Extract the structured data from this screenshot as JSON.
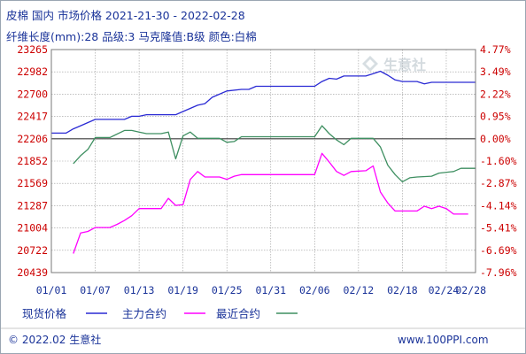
{
  "header": {
    "title": "皮棉 国内 市场价格 2021-21-30 - 2022-02-28",
    "subtitle": "纤维长度(mm):28 品级:3 马克隆值:B级 颜色:白棉"
  },
  "watermark": {
    "logo_text": "生意社"
  },
  "footer": {
    "copyright": "© 2022.02 生意社",
    "website": "www.100PPI.com"
  },
  "colors": {
    "spot": "#2a2ad4",
    "main_contract": "#ff00ff",
    "recent_contract": "#3e8f61",
    "zero_line": "#3a3a3a",
    "left_axis_text": "#cc0000",
    "right_axis_text": "#cc0000",
    "grid": "#9a9a9a",
    "title": "#1a3399"
  },
  "chart_data": {
    "type": "line",
    "x_tick_labels": [
      "01/01",
      "01/07",
      "01/13",
      "01/19",
      "01/25",
      "01/31",
      "02/06",
      "02/12",
      "02/18",
      "02/24",
      "02/28"
    ],
    "x_tick_positions": [
      0,
      6,
      12,
      18,
      24,
      30,
      36,
      42,
      48,
      54,
      58
    ],
    "xlim": [
      0,
      58
    ],
    "left_axis": {
      "ticks": [
        23265,
        22982,
        22700,
        22417,
        22206,
        21852,
        21569,
        21287,
        21004,
        20722,
        20439
      ],
      "ylim": [
        20439,
        23265
      ]
    },
    "right_axis": {
      "ticks": [
        "4.77%",
        "3.49%",
        "2.22%",
        "0.95%",
        "0.00%",
        "-1.60%",
        "-2.87%",
        "-4.14%",
        "-5.41%",
        "-6.69%",
        "-7.96%"
      ],
      "ylim": [
        -7.96,
        4.77
      ]
    },
    "legend": [
      {
        "name": "现货价格",
        "color": "#2a2ad4"
      },
      {
        "name": "主力合约",
        "color": "#ff00ff"
      },
      {
        "name": "最近合约",
        "color": "#3e8f61"
      }
    ],
    "series": [
      {
        "name": "现货价格",
        "axis": "left",
        "points": [
          [
            0,
            22206
          ],
          [
            2,
            22206
          ],
          [
            3,
            22260
          ],
          [
            4,
            22300
          ],
          [
            5,
            22340
          ],
          [
            6,
            22380
          ],
          [
            7,
            22380
          ],
          [
            10,
            22380
          ],
          [
            11,
            22420
          ],
          [
            12,
            22420
          ],
          [
            13,
            22440
          ],
          [
            17,
            22440
          ],
          [
            18,
            22480
          ],
          [
            20,
            22560
          ],
          [
            21,
            22580
          ],
          [
            22,
            22660
          ],
          [
            23,
            22700
          ],
          [
            24,
            22740
          ],
          [
            26,
            22760
          ],
          [
            27,
            22760
          ],
          [
            28,
            22800
          ],
          [
            36,
            22800
          ],
          [
            37,
            22860
          ],
          [
            38,
            22900
          ],
          [
            39,
            22890
          ],
          [
            40,
            22930
          ],
          [
            43,
            22930
          ],
          [
            44,
            22960
          ],
          [
            45,
            22990
          ],
          [
            46,
            22940
          ],
          [
            47,
            22880
          ],
          [
            48,
            22860
          ],
          [
            50,
            22860
          ],
          [
            51,
            22830
          ],
          [
            52,
            22850
          ],
          [
            53,
            22850
          ],
          [
            54,
            22850
          ],
          [
            58,
            22850
          ]
        ]
      },
      {
        "name": "主力合约",
        "axis": "left",
        "points": [
          [
            3,
            20680
          ],
          [
            4,
            20940
          ],
          [
            5,
            20960
          ],
          [
            6,
            21010
          ],
          [
            8,
            21010
          ],
          [
            9,
            21050
          ],
          [
            10,
            21100
          ],
          [
            11,
            21160
          ],
          [
            12,
            21250
          ],
          [
            13,
            21250
          ],
          [
            14,
            21250
          ],
          [
            15,
            21250
          ],
          [
            16,
            21380
          ],
          [
            17,
            21290
          ],
          [
            18,
            21300
          ],
          [
            19,
            21620
          ],
          [
            20,
            21720
          ],
          [
            21,
            21650
          ],
          [
            23,
            21650
          ],
          [
            24,
            21620
          ],
          [
            25,
            21660
          ],
          [
            26,
            21680
          ],
          [
            36,
            21680
          ],
          [
            37,
            21950
          ],
          [
            38,
            21840
          ],
          [
            39,
            21720
          ],
          [
            40,
            21670
          ],
          [
            41,
            21720
          ],
          [
            43,
            21730
          ],
          [
            44,
            21790
          ],
          [
            45,
            21460
          ],
          [
            46,
            21320
          ],
          [
            47,
            21220
          ],
          [
            48,
            21220
          ],
          [
            50,
            21220
          ],
          [
            51,
            21280
          ],
          [
            52,
            21250
          ],
          [
            53,
            21280
          ],
          [
            54,
            21250
          ],
          [
            55,
            21180
          ],
          [
            56,
            21180
          ],
          [
            57,
            21180
          ]
        ]
      },
      {
        "name": "最近合约",
        "axis": "left",
        "points": [
          [
            3,
            21820
          ],
          [
            4,
            21920
          ],
          [
            5,
            22000
          ],
          [
            6,
            22150
          ],
          [
            7,
            22150
          ],
          [
            8,
            22150
          ],
          [
            10,
            22240
          ],
          [
            11,
            22240
          ],
          [
            12,
            22220
          ],
          [
            13,
            22200
          ],
          [
            15,
            22200
          ],
          [
            16,
            22220
          ],
          [
            17,
            21880
          ],
          [
            18,
            22170
          ],
          [
            19,
            22220
          ],
          [
            20,
            22140
          ],
          [
            23,
            22140
          ],
          [
            24,
            22090
          ],
          [
            25,
            22100
          ],
          [
            26,
            22160
          ],
          [
            36,
            22160
          ],
          [
            37,
            22300
          ],
          [
            38,
            22200
          ],
          [
            39,
            22120
          ],
          [
            40,
            22060
          ],
          [
            41,
            22140
          ],
          [
            44,
            22140
          ],
          [
            45,
            22030
          ],
          [
            46,
            21800
          ],
          [
            47,
            21680
          ],
          [
            48,
            21590
          ],
          [
            49,
            21640
          ],
          [
            50,
            21650
          ],
          [
            52,
            21660
          ],
          [
            53,
            21700
          ],
          [
            55,
            21720
          ],
          [
            56,
            21760
          ],
          [
            58,
            21760
          ]
        ]
      }
    ]
  }
}
